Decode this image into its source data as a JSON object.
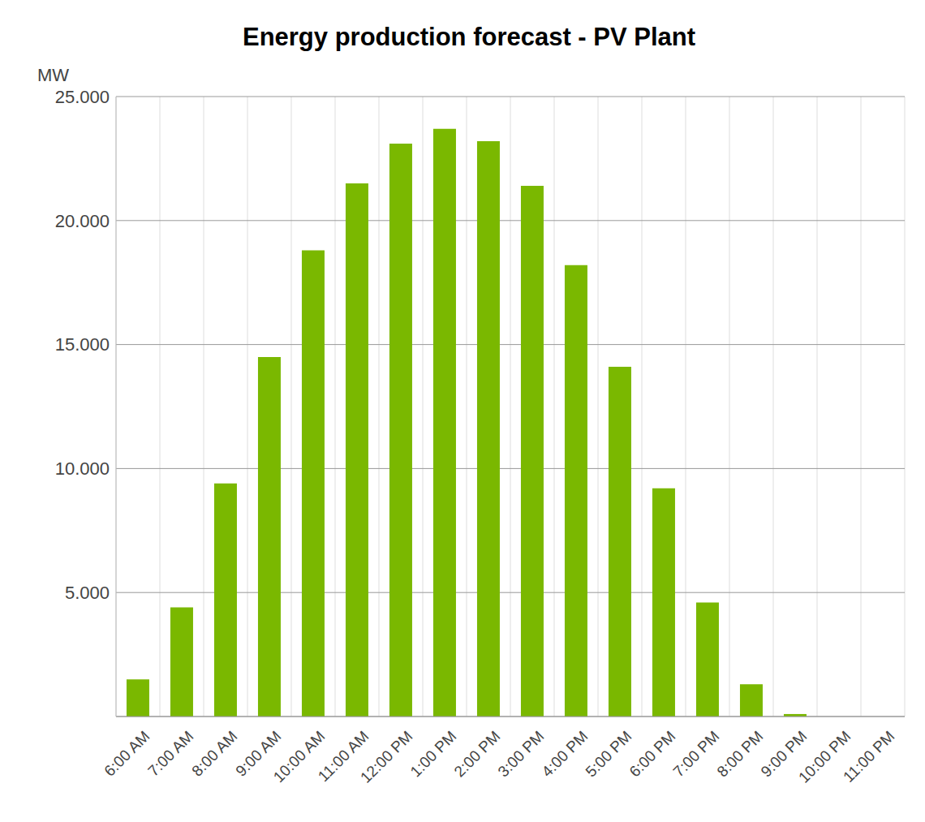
{
  "chart_data": {
    "type": "bar",
    "title": "Energy production forecast - PV Plant",
    "y_label": "MW",
    "categories": [
      "6:00 AM",
      "7:00 AM",
      "8:00 AM",
      "9:00 AM",
      "10:00 AM",
      "11:00 AM",
      "12:00 PM",
      "1:00 PM",
      "2:00 PM",
      "3:00 PM",
      "4:00 PM",
      "5:00 PM",
      "6:00 PM",
      "7:00 PM",
      "8:00 PM",
      "9:00 PM",
      "10:00 PM",
      "11:00 PM"
    ],
    "values": [
      1500,
      4400,
      9400,
      14500,
      18800,
      21500,
      23100,
      23700,
      23200,
      21400,
      18200,
      14100,
      9200,
      4600,
      1300,
      100,
      0,
      0
    ],
    "color": "#7ab800",
    "ylim": [
      0,
      25000
    ],
    "yticks": [
      {
        "value": 5000,
        "label": "5.000"
      },
      {
        "value": 10000,
        "label": "10.000"
      },
      {
        "value": 15000,
        "label": "15.000"
      },
      {
        "value": 20000,
        "label": "20.000"
      },
      {
        "value": 25000,
        "label": "25.000"
      }
    ],
    "grid": true
  }
}
